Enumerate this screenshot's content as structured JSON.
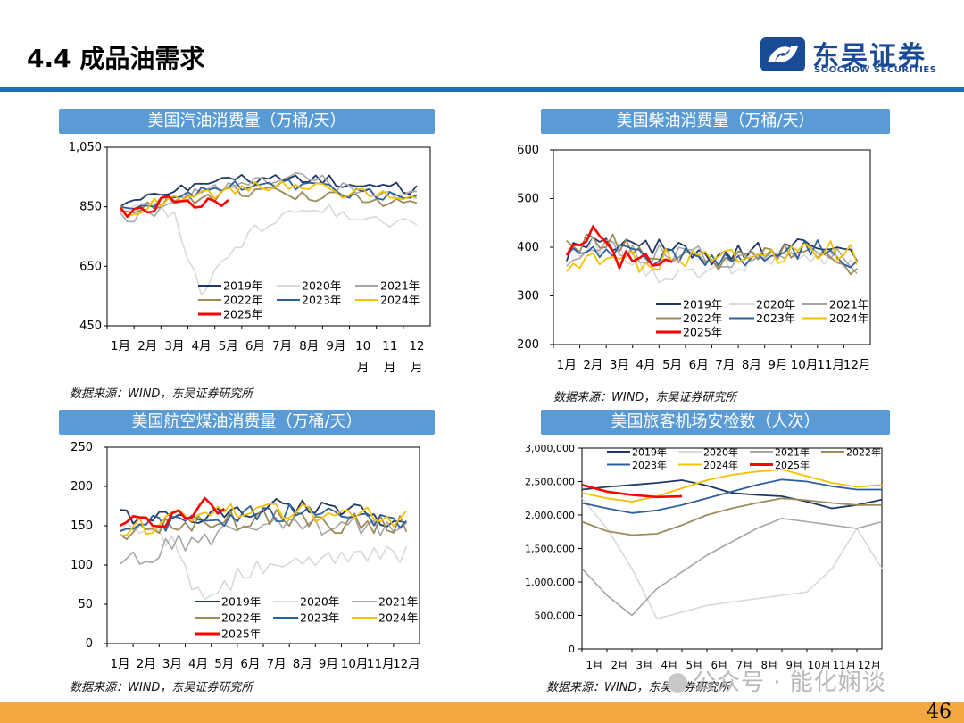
{
  "header": {
    "title": "4.4 成品油需求"
  },
  "logo": {
    "name_cn": "东吴证券",
    "name_en": "SOOCHOW SECURITIES",
    "brand_color": "#1a4b96"
  },
  "footer": {
    "page_number": "46",
    "watermark": "公众号 · 能化娴谈",
    "bar_color": "#f4a640"
  },
  "colors": {
    "series": {
      "2019年": "#1f3864",
      "2020年": "#d9d9d9",
      "2021年": "#a6a6a6",
      "2022年": "#9c8a5a",
      "2023年": "#2e5f9e",
      "2024年": "#f5c000",
      "2025年": "#ff0000"
    }
  },
  "panels": [
    {
      "title": "美国汽油消费量（万桶/天）",
      "source": "数据来源：WIND，东吴证券研究所"
    },
    {
      "title": "美国柴油消费量（万桶/天）",
      "source": "数据来源：WIND，东吴证券研究所"
    },
    {
      "title": "美国航空煤油消费量（万桶/天）",
      "source": "数据来源：WIND，东吴证券研究所"
    },
    {
      "title": "美国旅客机场安检数（人次）",
      "source": "数据来源：WIND，东吴证券研究所"
    }
  ],
  "chart_data": [
    {
      "type": "line",
      "ylim": [
        450,
        1050
      ],
      "yticks": [
        "1,050",
        "850",
        "650",
        "450"
      ],
      "ytick_values": [
        1050,
        850,
        650,
        450
      ],
      "xticks": [
        [
          "1月"
        ],
        [
          "2月"
        ],
        [
          "3月"
        ],
        [
          "4月"
        ],
        [
          "5月"
        ],
        [
          "6月"
        ],
        [
          "7月"
        ],
        [
          "8月"
        ],
        [
          "9月"
        ],
        [
          "10",
          "月"
        ],
        [
          "11",
          "月"
        ],
        [
          "12",
          "月"
        ]
      ],
      "legend": [
        "2019年",
        "2020年",
        "2021年",
        "2022年",
        "2023年",
        "2024年",
        "2025年"
      ],
      "legend_position": "bottom-left",
      "series": [
        {
          "name": "2019年",
          "values": [
            865,
            880,
            915,
            935,
            950,
            925,
            945,
            955,
            935,
            920,
            915,
            900
          ]
        },
        {
          "name": "2020年",
          "values": [
            850,
            860,
            820,
            550,
            690,
            770,
            830,
            845,
            835,
            815,
            800,
            805
          ]
        },
        {
          "name": "2021年",
          "values": [
            810,
            820,
            880,
            900,
            920,
            930,
            950,
            950,
            920,
            905,
            890,
            890
          ]
        },
        {
          "name": "2022年",
          "values": [
            830,
            850,
            880,
            870,
            900,
            905,
            890,
            885,
            900,
            885,
            865,
            875
          ]
        },
        {
          "name": "2023年",
          "values": [
            840,
            860,
            880,
            895,
            915,
            925,
            930,
            915,
            905,
            895,
            880,
            890
          ]
        },
        {
          "name": "2024年",
          "values": [
            830,
            850,
            885,
            885,
            910,
            915,
            920,
            915,
            900,
            895,
            880,
            885
          ]
        },
        {
          "name": "2025年",
          "values": [
            835,
            840,
            880,
            855,
            870
          ]
        }
      ]
    },
    {
      "type": "line",
      "ylim": [
        200,
        600
      ],
      "yticks": [
        "600",
        "500",
        "400",
        "300",
        "200"
      ],
      "ytick_values": [
        600,
        500,
        400,
        300,
        200
      ],
      "xticks": [
        "1月",
        "2月",
        "3月",
        "4月",
        "5月",
        "6月",
        "7月",
        "8月",
        "9月",
        "10月",
        "11月",
        "12月"
      ],
      "legend": [
        "2019年",
        "2020年",
        "2021年",
        "2022年",
        "2023年",
        "2024年",
        "2025年"
      ],
      "legend_position": "bottom-right",
      "series": [
        {
          "name": "2019年",
          "values": [
            390,
            420,
            400,
            395,
            400,
            385,
            380,
            390,
            395,
            400,
            395,
            370
          ]
        },
        {
          "name": "2020年",
          "values": [
            380,
            410,
            395,
            350,
            340,
            355,
            360,
            375,
            370,
            380,
            380,
            365
          ]
        },
        {
          "name": "2021年",
          "values": [
            350,
            400,
            400,
            385,
            385,
            385,
            375,
            385,
            380,
            395,
            390,
            360
          ]
        },
        {
          "name": "2022年",
          "values": [
            400,
            420,
            410,
            380,
            385,
            375,
            370,
            380,
            385,
            395,
            390,
            355
          ]
        },
        {
          "name": "2023年",
          "values": [
            380,
            400,
            395,
            380,
            385,
            375,
            375,
            385,
            385,
            395,
            395,
            370
          ]
        },
        {
          "name": "2024年",
          "values": [
            370,
            380,
            385,
            360,
            385,
            375,
            375,
            380,
            385,
            390,
            395,
            385
          ]
        },
        {
          "name": "2025年",
          "values": [
            380,
            430,
            375,
            385,
            360
          ]
        }
      ]
    },
    {
      "type": "line",
      "ylim": [
        0,
        250
      ],
      "yticks": [
        "250",
        "200",
        "150",
        "100",
        "50",
        "0"
      ],
      "ytick_values": [
        250,
        200,
        150,
        100,
        50,
        0
      ],
      "xticks": [
        "1月",
        "2月",
        "3月",
        "4月",
        "5月",
        "6月",
        "7月",
        "8月",
        "9月",
        "10月",
        "11月",
        "12月"
      ],
      "legend": [
        "2019年",
        "2020年",
        "2021年",
        "2022年",
        "2023年",
        "2024年",
        "2025年"
      ],
      "legend_position": "bottom-right",
      "series": [
        {
          "name": "2019年",
          "values": [
            160,
            160,
            165,
            160,
            170,
            170,
            175,
            175,
            165,
            170,
            160,
            165
          ]
        },
        {
          "name": "2020年",
          "values": [
            150,
            150,
            130,
            60,
            75,
            95,
            100,
            110,
            105,
            110,
            110,
            115
          ]
        },
        {
          "name": "2021年",
          "values": [
            110,
            110,
            125,
            130,
            140,
            150,
            150,
            150,
            145,
            150,
            145,
            145
          ]
        },
        {
          "name": "2022年",
          "values": [
            140,
            140,
            150,
            150,
            155,
            160,
            160,
            160,
            150,
            155,
            150,
            150
          ]
        },
        {
          "name": "2023年",
          "values": [
            150,
            150,
            155,
            160,
            160,
            165,
            165,
            165,
            160,
            160,
            155,
            160
          ]
        },
        {
          "name": "2024年",
          "values": [
            145,
            150,
            160,
            160,
            165,
            170,
            170,
            170,
            160,
            165,
            160,
            160
          ]
        },
        {
          "name": "2025年",
          "values": [
            155,
            150,
            165,
            175,
            170
          ]
        }
      ]
    },
    {
      "type": "line",
      "ylim": [
        0,
        3000000
      ],
      "yticks": [
        "3,000,000",
        "2,500,000",
        "2,000,000",
        "1,500,000",
        "1,000,000",
        "500,000",
        "0"
      ],
      "ytick_values": [
        3000000,
        2500000,
        2000000,
        1500000,
        1000000,
        500000,
        0
      ],
      "xticks": [
        "1月",
        "2月",
        "3月",
        "4月",
        "5月",
        "6月",
        "7月",
        "8月",
        "9月",
        "10月",
        "11月",
        "12月"
      ],
      "legend": [
        "2019年",
        "2020年",
        "2021年",
        "2022年",
        "2023年",
        "2024年",
        "2025年"
      ],
      "legend_position": "top",
      "series": [
        {
          "name": "2019年",
          "values": [
            2380,
            2420,
            2450,
            2480,
            2520,
            2440,
            2330,
            2300,
            2280,
            2200,
            2100,
            2150,
            2230
          ]
        },
        {
          "name": "2020年",
          "values": [
            2250,
            1800,
            1200,
            450,
            550,
            650,
            700,
            750,
            800,
            850,
            1200,
            1800,
            1200
          ]
        },
        {
          "name": "2021年",
          "values": [
            1200,
            800,
            500,
            900,
            1150,
            1400,
            1600,
            1800,
            1950,
            1900,
            1850,
            1800,
            1900
          ]
        },
        {
          "name": "2022年",
          "values": [
            1900,
            1760,
            1700,
            1720,
            1850,
            2000,
            2100,
            2180,
            2250,
            2220,
            2180,
            2150,
            2150
          ]
        },
        {
          "name": "2023年",
          "values": [
            2180,
            2100,
            2030,
            2070,
            2150,
            2250,
            2350,
            2450,
            2530,
            2500,
            2430,
            2380,
            2380
          ]
        },
        {
          "name": "2024年",
          "values": [
            2330,
            2250,
            2200,
            2280,
            2400,
            2520,
            2600,
            2650,
            2680,
            2580,
            2480,
            2420,
            2450
          ]
        },
        {
          "name": "2025年",
          "values": [
            2450,
            2350,
            2300,
            2270,
            2280
          ]
        }
      ],
      "value_unit_in_values": "thousands"
    }
  ]
}
